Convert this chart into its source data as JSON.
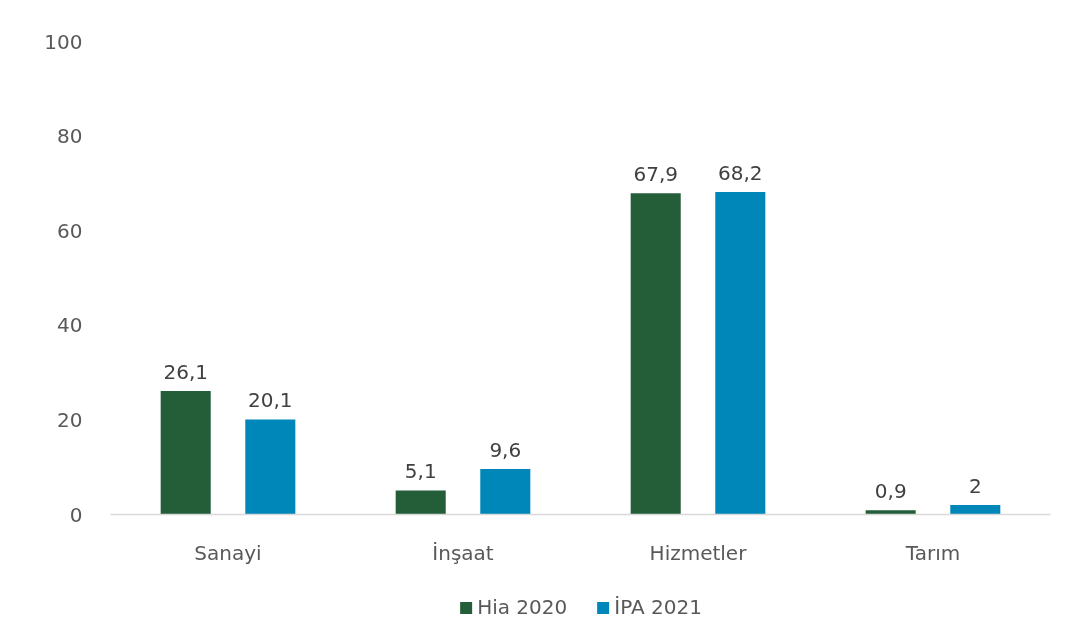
{
  "chart_data": {
    "type": "bar",
    "categories": [
      "Sanayi",
      "İnşaat",
      "Hizmetler",
      "Tarım"
    ],
    "series": [
      {
        "name": "Hia 2020",
        "color": "#235e39",
        "values": [
          26.1,
          5.1,
          67.9,
          0.9
        ],
        "value_labels": [
          "26,1",
          "5,1",
          "67,9",
          "0,9"
        ]
      },
      {
        "name": "İPA 2021",
        "color": "#0087ba",
        "values": [
          20.1,
          9.6,
          68.2,
          2
        ],
        "value_labels": [
          "20,1",
          "9,6",
          "68,2",
          "2"
        ]
      }
    ],
    "ylim": [
      0,
      100
    ],
    "yticks": [
      0,
      20,
      40,
      60,
      80,
      100
    ],
    "legend": "bottom"
  }
}
